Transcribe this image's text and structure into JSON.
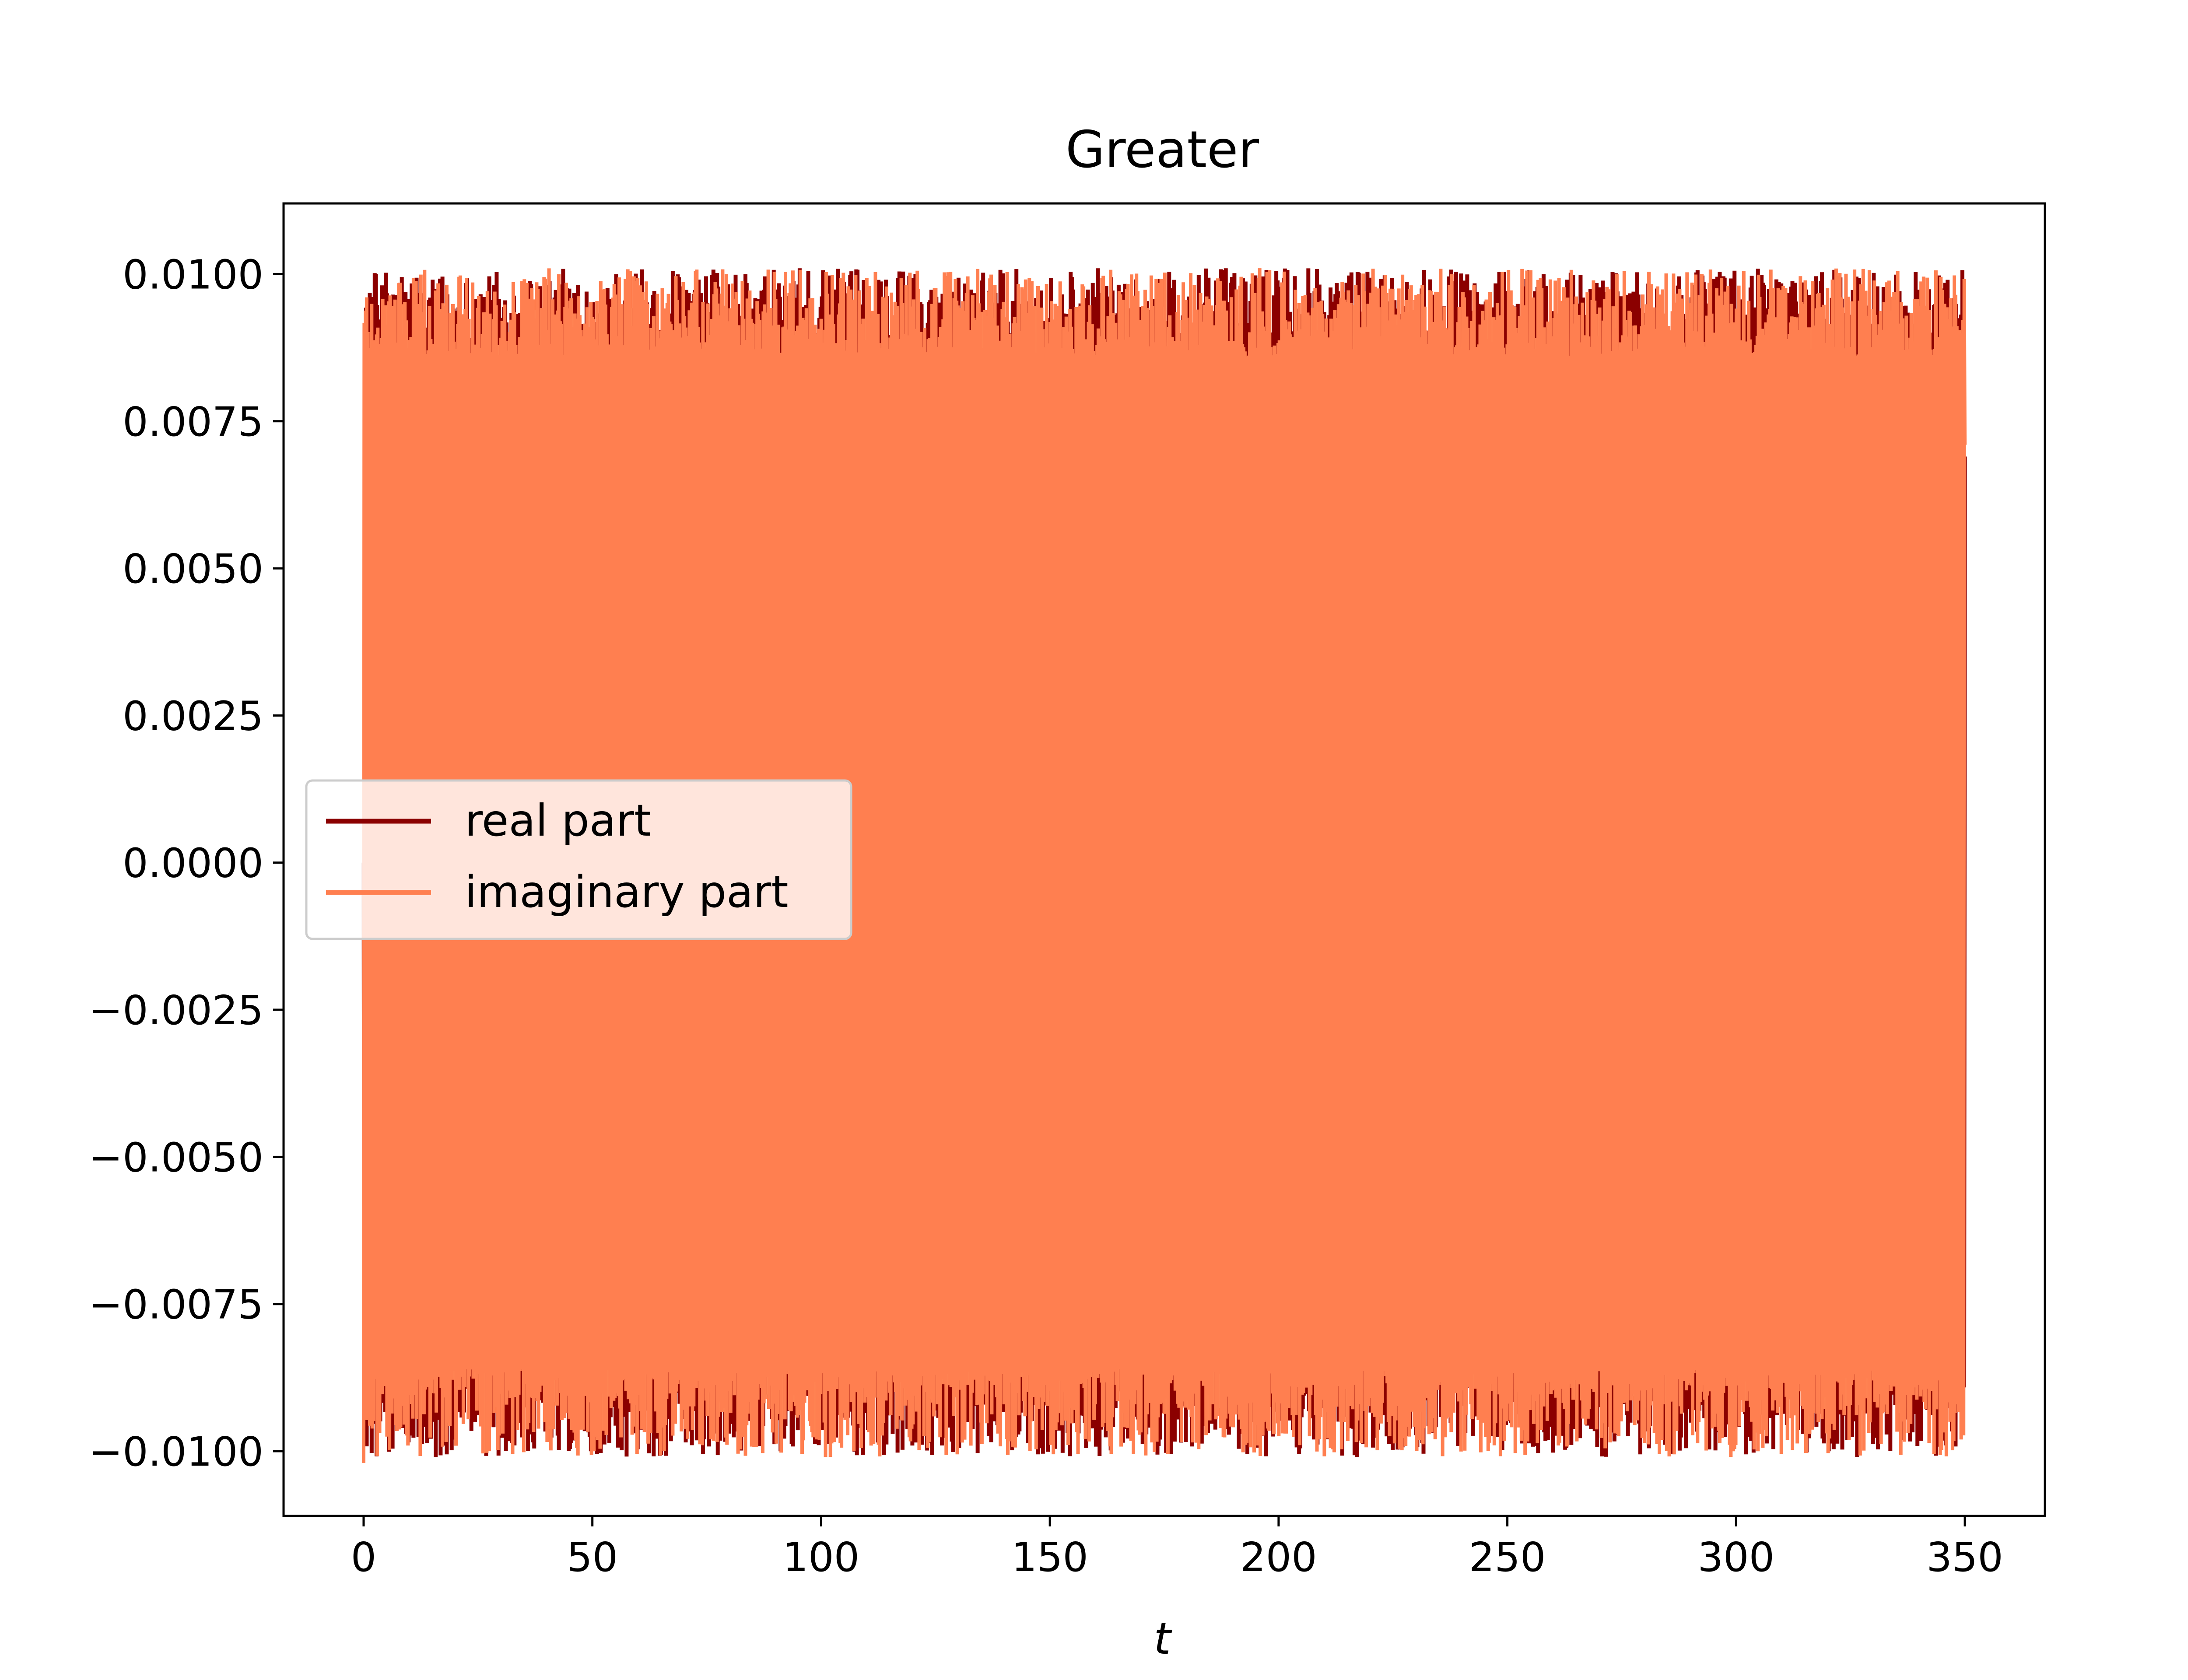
{
  "chart_data": {
    "type": "line",
    "title": "Greater",
    "xlabel": "t",
    "ylabel": "",
    "xlim": [
      -17.5,
      367.5
    ],
    "ylim": [
      -0.0111,
      0.0112
    ],
    "xticks": [
      0,
      50,
      100,
      150,
      200,
      250,
      300,
      350
    ],
    "xtick_labels": [
      "0",
      "50",
      "100",
      "150",
      "200",
      "250",
      "300",
      "350"
    ],
    "yticks": [
      -0.01,
      -0.0075,
      -0.005,
      -0.0025,
      0.0,
      0.0025,
      0.005,
      0.0075,
      0.01
    ],
    "ytick_labels": [
      "−0.0100",
      "−0.0075",
      "−0.0050",
      "−0.0025",
      "0.0000",
      "0.0025",
      "0.0050",
      "0.0075",
      "0.0100"
    ],
    "grid": false,
    "legend": {
      "placement": "center-left"
    },
    "x_range": [
      0,
      350
    ],
    "series": [
      {
        "name": "real part",
        "color": "#8b0000",
        "description": "rapid oscillation, amplitude approx 0.0090 to 0.0101",
        "amplitude_min": 0.0088,
        "amplitude_max": 0.0101,
        "start_value": 0.0,
        "end_value": 0.0069
      },
      {
        "name": "imaginary part",
        "color": "#ff7f50",
        "description": "rapid oscillation, amplitude approx 0.0086 to 0.0101",
        "amplitude_min": 0.0086,
        "amplitude_max": 0.0101,
        "start_value": -0.0102,
        "end_value": 0.0071
      }
    ]
  }
}
